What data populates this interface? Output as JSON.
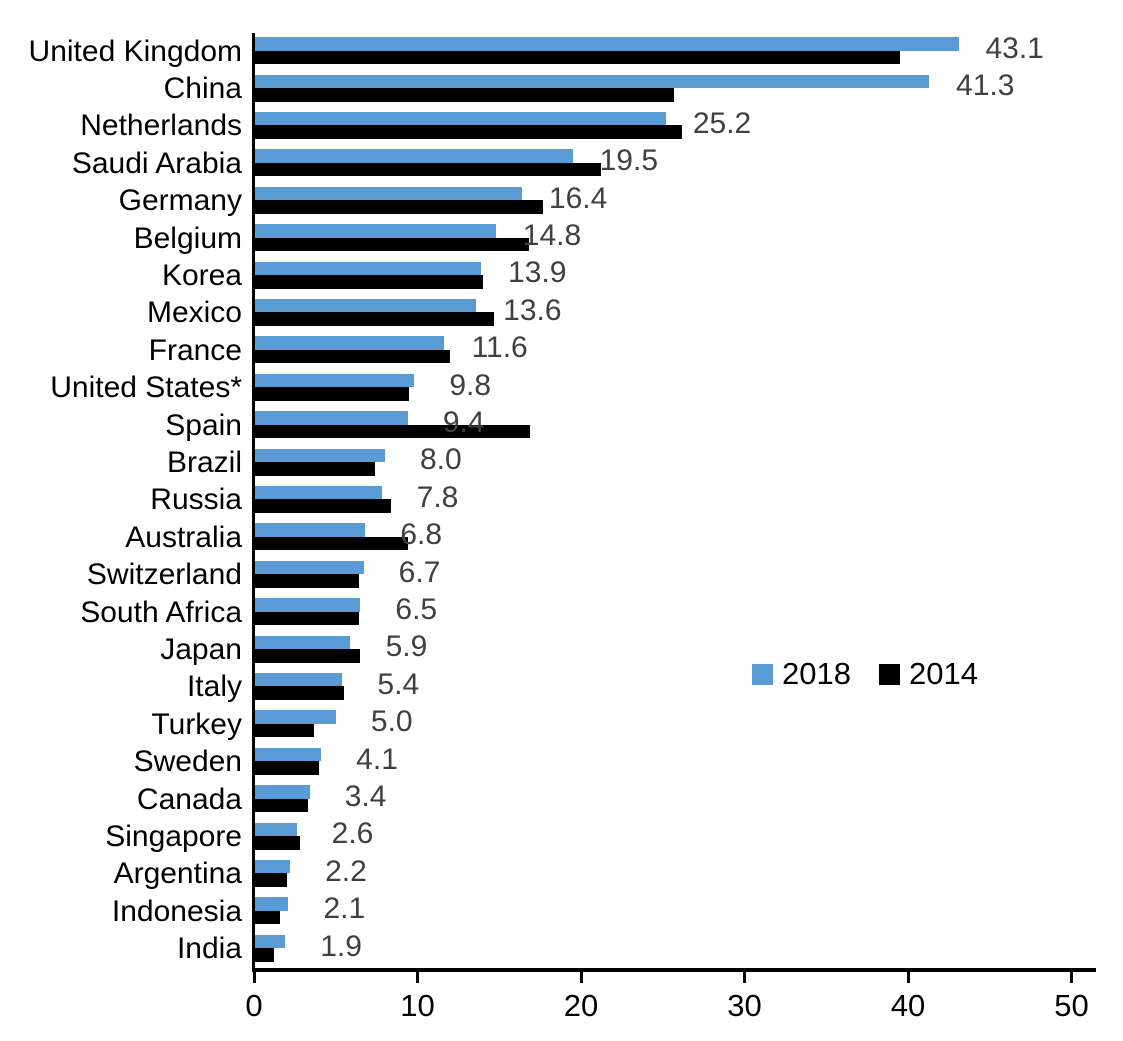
{
  "chart_data": {
    "type": "bar",
    "orientation": "horizontal",
    "title": "",
    "xlabel": "",
    "ylabel": "",
    "grid": false,
    "categories": [
      "United Kingdom",
      "China",
      "Netherlands",
      "Saudi Arabia",
      "Germany",
      "Belgium",
      "Korea",
      "Mexico",
      "France",
      "United States*",
      "Spain",
      "Brazil",
      "Russia",
      "Australia",
      "Switzerland",
      "South Africa",
      "Japan",
      "Italy",
      "Turkey",
      "Sweden",
      "Canada",
      "Singapore",
      "Argentina",
      "Indonesia",
      "India"
    ],
    "series": [
      {
        "name": "2018",
        "color": "#5B9BD5",
        "values": [
          43.1,
          41.3,
          25.2,
          19.5,
          16.4,
          14.8,
          13.9,
          13.6,
          11.6,
          9.8,
          9.4,
          8.0,
          7.8,
          6.8,
          6.7,
          6.5,
          5.9,
          5.4,
          5.0,
          4.1,
          3.4,
          2.6,
          2.2,
          2.1,
          1.9
        ]
      },
      {
        "name": "2014",
        "color": "#000000",
        "values": [
          39.5,
          25.7,
          26.2,
          21.2,
          17.7,
          16.8,
          14.0,
          14.7,
          12.0,
          9.5,
          16.9,
          7.4,
          8.4,
          9.4,
          6.4,
          6.4,
          6.5,
          5.5,
          3.7,
          4.0,
          3.3,
          2.8,
          2.0,
          1.6,
          1.2
        ]
      }
    ],
    "data_labels": {
      "attached_to_series": "2018",
      "color": "#404040",
      "values": [
        "43.1",
        "41.3",
        "25.2",
        "19.5",
        "16.4",
        "14.8",
        "13.9",
        "13.6",
        "11.6",
        "9.8",
        "9.4",
        "8.0",
        "7.8",
        "6.8",
        "6.7",
        "6.5",
        "5.9",
        "5.4",
        "5.0",
        "4.1",
        "3.4",
        "2.6",
        "2.2",
        "2.1",
        "1.9"
      ]
    },
    "x_axis": {
      "min": 0,
      "max": 50,
      "ticks": [
        "0",
        "10",
        "20",
        "30",
        "40",
        "50"
      ]
    },
    "legend": {
      "position": "middle-right",
      "entries": [
        {
          "label": "2018",
          "color": "#5B9BD5"
        },
        {
          "label": "2014",
          "color": "#000000"
        }
      ]
    }
  },
  "colors": {
    "background": "#ffffff",
    "axis": "#000000",
    "category_label": "#000000",
    "value_label": "#404040"
  }
}
